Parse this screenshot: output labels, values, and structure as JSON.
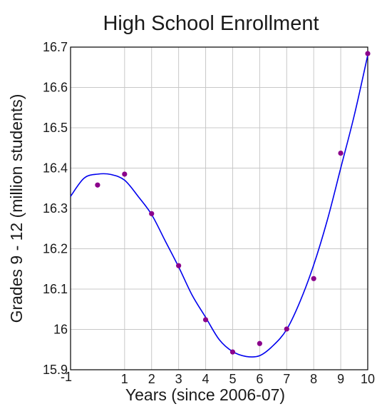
{
  "chart_data": {
    "type": "scatter",
    "title": "High School Enrollment",
    "xlabel": "Years (since 2006-07)",
    "ylabel": "Grades 9 - 12 (million students)",
    "xlim": [
      -1,
      10
    ],
    "ylim": [
      15.9,
      16.7
    ],
    "grid": true,
    "x_tick_labels": [
      "-1",
      "1",
      "2",
      "3",
      "4",
      "5",
      "6",
      "7",
      "8",
      "9",
      "10"
    ],
    "y_tick_labels": [
      "15.9",
      "16",
      "16.1",
      "16.2",
      "16.3",
      "16.4",
      "16.5",
      "16.6",
      "16.7"
    ],
    "series": [
      {
        "x": [
          0,
          1,
          2,
          3,
          4,
          5,
          6,
          7,
          8,
          9,
          10
        ],
        "values": [
          16.358,
          16.385,
          16.287,
          16.158,
          16.024,
          15.944,
          15.965,
          16.001,
          16.126,
          16.437,
          16.684
        ],
        "marker_color": "#8b008b"
      }
    ],
    "fit_curve": {
      "type": "cubic",
      "color": "#0000ee",
      "x": [
        -1,
        -0.5,
        0,
        0.5,
        1,
        1.5,
        2,
        2.5,
        3,
        3.5,
        4,
        4.5,
        5,
        5.5,
        6,
        6.5,
        7,
        7.5,
        8,
        8.5,
        9,
        9.5,
        10
      ],
      "values": [
        16.33,
        16.375,
        16.385,
        16.384,
        16.37,
        16.33,
        16.285,
        16.22,
        16.155,
        16.085,
        16.03,
        15.975,
        15.945,
        15.933,
        15.935,
        15.96,
        16.0,
        16.07,
        16.16,
        16.27,
        16.4,
        16.53,
        16.68
      ]
    }
  }
}
